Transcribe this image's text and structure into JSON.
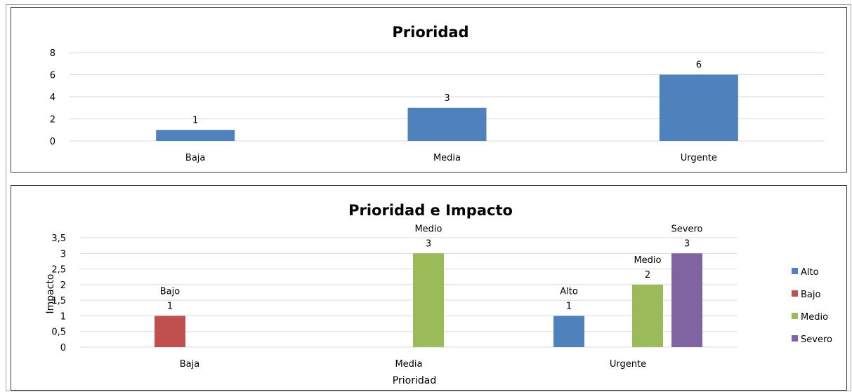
{
  "chart_data": [
    {
      "type": "bar",
      "title": "Prioridad",
      "xlabel": "",
      "ylabel": "",
      "categories": [
        "Baja",
        "Media",
        "Urgente"
      ],
      "values": [
        1,
        3,
        6
      ],
      "ylim": [
        0,
        8
      ],
      "yticks": [
        "0",
        "2",
        "4",
        "6",
        "8"
      ],
      "data_labels": [
        "1",
        "3",
        "6"
      ],
      "grid": true,
      "legend": "none",
      "colors": {
        "bar": "#4f81bd"
      }
    },
    {
      "type": "bar",
      "title": "Prioridad e Impacto",
      "xlabel": "Prioridad",
      "ylabel": "Impacto",
      "categories": [
        "Baja",
        "Media",
        "Urgente"
      ],
      "ylim": [
        0,
        3.5
      ],
      "yticks": [
        "0",
        "0,5",
        "1",
        "1,5",
        "2",
        "2,5",
        "3",
        "3,5"
      ],
      "grid": true,
      "legend": "right",
      "series": [
        {
          "name": "Alto",
          "color": "#4f81bd",
          "values": [
            0,
            0,
            1
          ]
        },
        {
          "name": "Bajo",
          "color": "#c0504d",
          "values": [
            1,
            0,
            0
          ]
        },
        {
          "name": "Medio",
          "color": "#9bbb59",
          "values": [
            0,
            3,
            2
          ]
        },
        {
          "name": "Severo",
          "color": "#8064a2",
          "values": [
            0,
            0,
            3
          ]
        }
      ],
      "data_labels": [
        {
          "category": "Baja",
          "series": "Bajo",
          "name": "Bajo",
          "value": "1"
        },
        {
          "category": "Media",
          "series": "Medio",
          "name": "Medio",
          "value": "3"
        },
        {
          "category": "Urgente",
          "series": "Alto",
          "name": "Alto",
          "value": "1"
        },
        {
          "category": "Urgente",
          "series": "Medio",
          "name": "Medio",
          "value": "2"
        },
        {
          "category": "Urgente",
          "series": "Severo",
          "name": "Severo",
          "value": "3"
        }
      ]
    }
  ]
}
